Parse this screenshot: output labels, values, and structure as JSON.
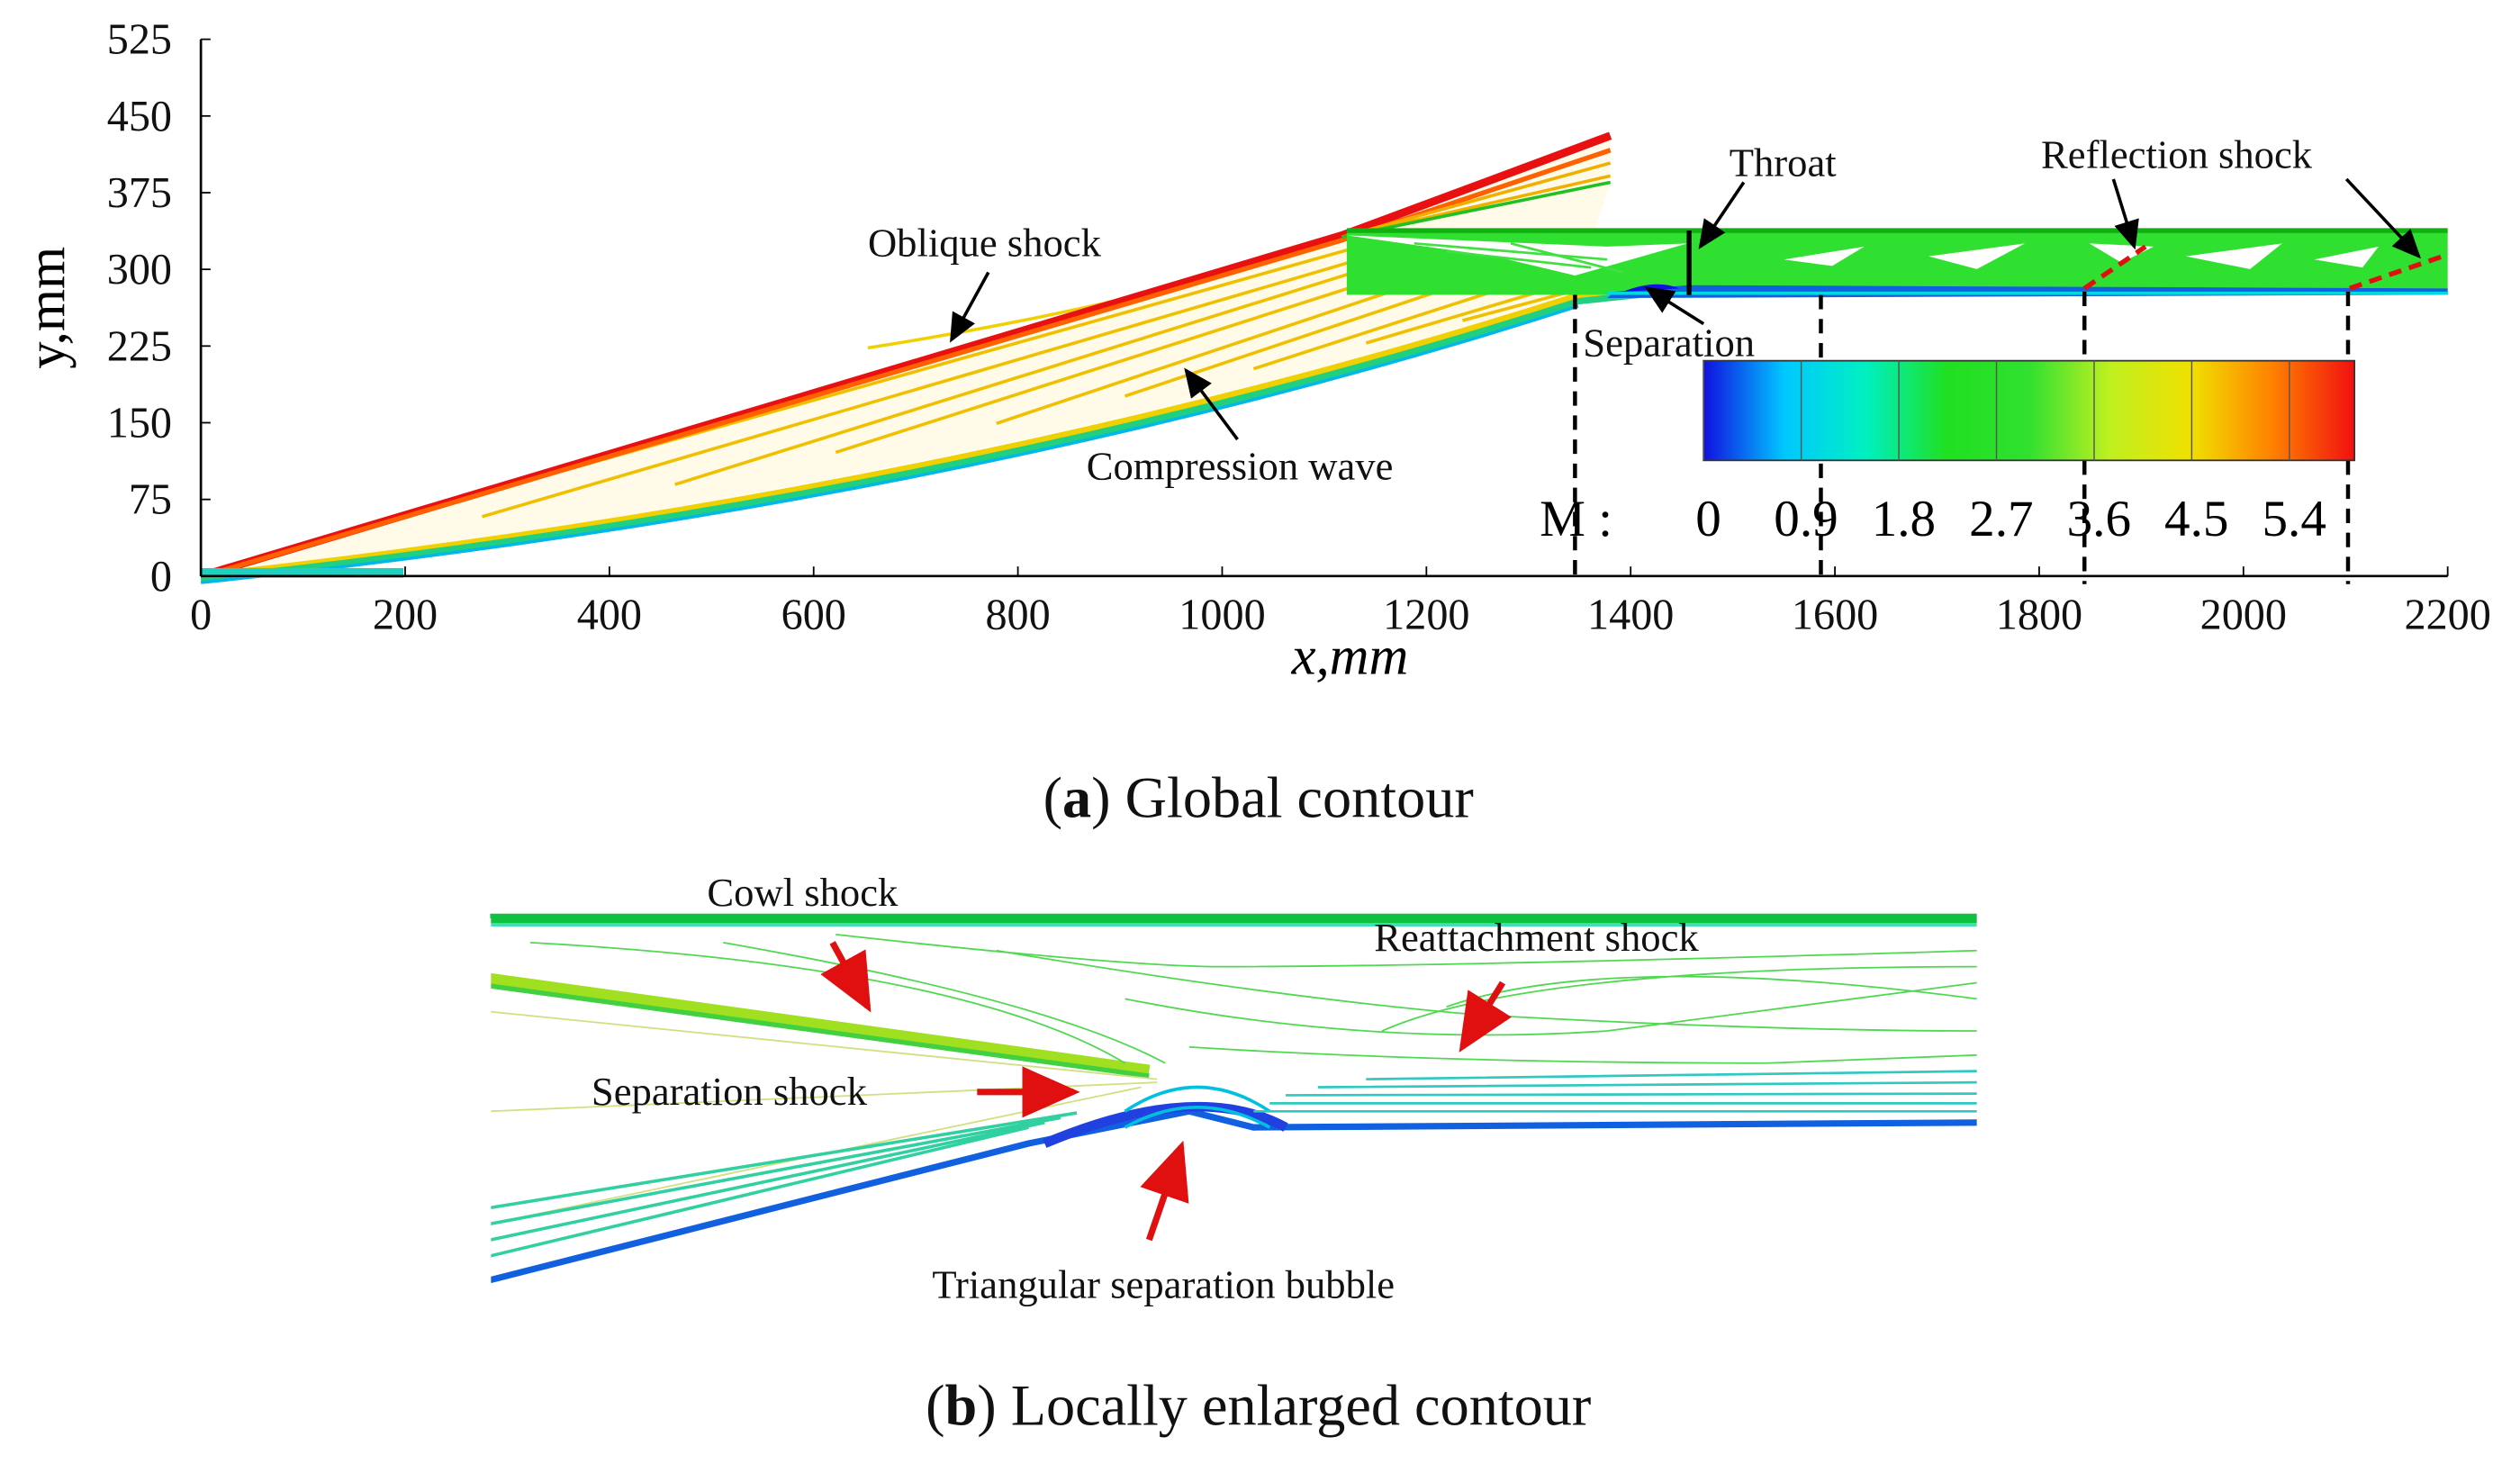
{
  "chart_data": [
    {
      "type": "contour",
      "xlabel": "x,mm",
      "ylabel": "y,mm",
      "xlim": [
        0,
        2200
      ],
      "xticks": [
        0,
        200,
        400,
        600,
        800,
        1000,
        1200,
        1400,
        1600,
        1800,
        2000,
        2200
      ],
      "ylim": [
        0,
        525
      ],
      "yticks": [
        0,
        75,
        150,
        225,
        300,
        375,
        450,
        525
      ],
      "colorbar": {
        "label": "M :",
        "clim": [
          0,
          6
        ],
        "ticks": [
          0,
          0.9,
          1.8,
          2.7,
          3.6,
          4.5,
          5.4
        ],
        "colors": [
          "#1010e0",
          "#00c8ff",
          "#00f0c0",
          "#20e020",
          "#30e030",
          "#c0f020",
          "#f0e000",
          "#ff8000",
          "#f01010"
        ]
      },
      "annotations": [
        "Oblique shock",
        "Compression wave",
        "Throat",
        "Separation",
        "Reflection shock"
      ],
      "caption": [
        "(",
        "a",
        ") Global contour"
      ]
    },
    {
      "type": "contour",
      "annotations": [
        "Cowl shock",
        "Reattachment shock",
        "Separation shock",
        "Triangular separation bubble"
      ],
      "caption": [
        "(",
        "b",
        ") Locally enlarged contour"
      ]
    }
  ]
}
